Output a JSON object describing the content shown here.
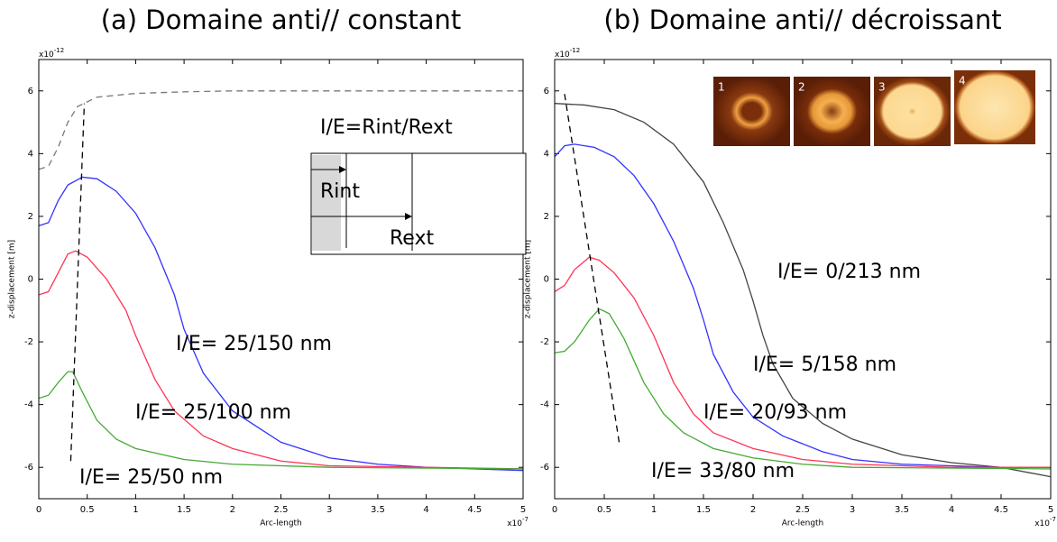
{
  "chart_data": [
    {
      "type": "line",
      "title": "(a) Domaine anti// constant",
      "xlabel": "Arc-length",
      "ylabel": "z-displacement [m]",
      "x_multiplier": {
        "base": "x10",
        "exponent": "-7"
      },
      "y_multiplier": {
        "base": "x10",
        "exponent": "-12"
      },
      "xlim": [
        0,
        5
      ],
      "ylim": [
        -7,
        7
      ],
      "xticks": [
        0,
        0.5,
        1,
        1.5,
        2,
        2.5,
        3,
        3.5,
        4,
        4.5,
        5
      ],
      "yticks": [
        -6,
        -4,
        -2,
        0,
        2,
        4,
        6
      ],
      "series": [
        {
          "color": "#777777",
          "dashed": true,
          "x": [
            0,
            0.1,
            0.2,
            0.3,
            0.4,
            0.6,
            1.0,
            1.5,
            2,
            5
          ],
          "values": [
            3.5,
            3.6,
            4.2,
            5.0,
            5.5,
            5.8,
            5.92,
            5.97,
            6,
            6
          ]
        },
        {
          "color": "#3333ff",
          "x": [
            0,
            0.1,
            0.2,
            0.3,
            0.45,
            0.6,
            0.8,
            1.0,
            1.2,
            1.4,
            1.5,
            1.7,
            2,
            2.5,
            3,
            3.5,
            4,
            5
          ],
          "values": [
            1.7,
            1.8,
            2.5,
            3.0,
            3.25,
            3.2,
            2.8,
            2.1,
            1.0,
            -0.5,
            -1.6,
            -3.0,
            -4.2,
            -5.2,
            -5.7,
            -5.9,
            -6.0,
            -6.1
          ]
        },
        {
          "color": "#ff3355",
          "x": [
            0,
            0.1,
            0.2,
            0.3,
            0.38,
            0.5,
            0.7,
            0.9,
            1.0,
            1.2,
            1.4,
            1.7,
            2,
            2.5,
            3,
            5
          ],
          "values": [
            -0.5,
            -0.4,
            0.2,
            0.8,
            0.9,
            0.7,
            0,
            -1.0,
            -1.8,
            -3.2,
            -4.2,
            -5.0,
            -5.4,
            -5.8,
            -5.95,
            -6.05
          ]
        },
        {
          "color": "#44aa33",
          "x": [
            0,
            0.1,
            0.2,
            0.3,
            0.35,
            0.45,
            0.6,
            0.8,
            1.0,
            1.5,
            2,
            3,
            5
          ],
          "values": [
            -3.8,
            -3.7,
            -3.3,
            -2.95,
            -2.95,
            -3.6,
            -4.5,
            -5.1,
            -5.4,
            -5.75,
            -5.9,
            -6.0,
            -6.05
          ]
        },
        {
          "color": "#000000",
          "dashed": true,
          "x": [
            0.33,
            0.47
          ],
          "values": [
            -5.8,
            5.6
          ]
        }
      ],
      "annotations": [
        "I/E= 25/150 nm",
        "I/E= 25/100 nm",
        "I/E= 25/50 nm",
        "I/E=Rint/Rext",
        "Rint",
        "Rext"
      ]
    },
    {
      "type": "line",
      "title": "(b) Domaine anti// décroissant",
      "xlabel": "Arc-length",
      "ylabel": "z-displacement [m]",
      "x_multiplier": {
        "base": "x10",
        "exponent": "-7"
      },
      "y_multiplier": {
        "base": "x10",
        "exponent": "-12"
      },
      "xlim": [
        0,
        5
      ],
      "ylim": [
        -7,
        7
      ],
      "xticks": [
        0,
        0.5,
        1,
        1.5,
        2,
        2.5,
        3,
        3.5,
        4,
        4.5,
        5
      ],
      "yticks": [
        -6,
        -4,
        -2,
        0,
        2,
        4,
        6
      ],
      "series": [
        {
          "color": "#444444",
          "x": [
            0,
            0.3,
            0.6,
            0.9,
            1.2,
            1.5,
            1.7,
            1.9,
            2.0,
            2.1,
            2.2,
            2.4,
            2.7,
            3,
            3.5,
            4,
            4.5,
            5
          ],
          "values": [
            5.6,
            5.55,
            5.4,
            5.0,
            4.3,
            3.1,
            1.8,
            0.3,
            -0.7,
            -1.8,
            -2.7,
            -3.8,
            -4.6,
            -5.1,
            -5.6,
            -5.85,
            -6.0,
            -6.3
          ]
        },
        {
          "color": "#3333ff",
          "x": [
            0,
            0.1,
            0.2,
            0.4,
            0.6,
            0.8,
            1.0,
            1.2,
            1.4,
            1.5,
            1.6,
            1.8,
            2,
            2.3,
            2.7,
            3,
            3.5,
            4,
            4.5,
            5
          ],
          "values": [
            3.9,
            4.25,
            4.3,
            4.2,
            3.9,
            3.3,
            2.4,
            1.2,
            -0.3,
            -1.3,
            -2.4,
            -3.6,
            -4.4,
            -5.0,
            -5.5,
            -5.75,
            -5.9,
            -5.95,
            -6.0,
            -6.0
          ]
        },
        {
          "color": "#ff3355",
          "x": [
            0,
            0.1,
            0.2,
            0.35,
            0.45,
            0.6,
            0.8,
            1.0,
            1.2,
            1.4,
            1.6,
            2,
            2.5,
            3,
            4,
            5
          ],
          "values": [
            -0.4,
            -0.2,
            0.3,
            0.7,
            0.6,
            0.2,
            -0.6,
            -1.8,
            -3.3,
            -4.3,
            -4.9,
            -5.4,
            -5.75,
            -5.9,
            -6.0,
            -6.0
          ]
        },
        {
          "color": "#44aa33",
          "x": [
            0,
            0.1,
            0.2,
            0.35,
            0.45,
            0.55,
            0.7,
            0.9,
            1.1,
            1.3,
            1.6,
            2,
            2.5,
            3,
            5
          ],
          "values": [
            -2.35,
            -2.3,
            -2.0,
            -1.3,
            -0.95,
            -1.1,
            -1.9,
            -3.3,
            -4.3,
            -4.9,
            -5.4,
            -5.7,
            -5.9,
            -6.0,
            -6.05
          ]
        },
        {
          "color": "#000000",
          "dashed": true,
          "x": [
            0.1,
            0.65
          ],
          "values": [
            5.9,
            -5.2
          ]
        }
      ],
      "annotations": [
        "I/E= 0/213 nm",
        "I/E= 5/158 nm",
        "I/E= 20/93 nm",
        "I/E= 33/80 nm"
      ],
      "inset_labels": [
        "1",
        "2",
        "3",
        "4"
      ]
    }
  ]
}
